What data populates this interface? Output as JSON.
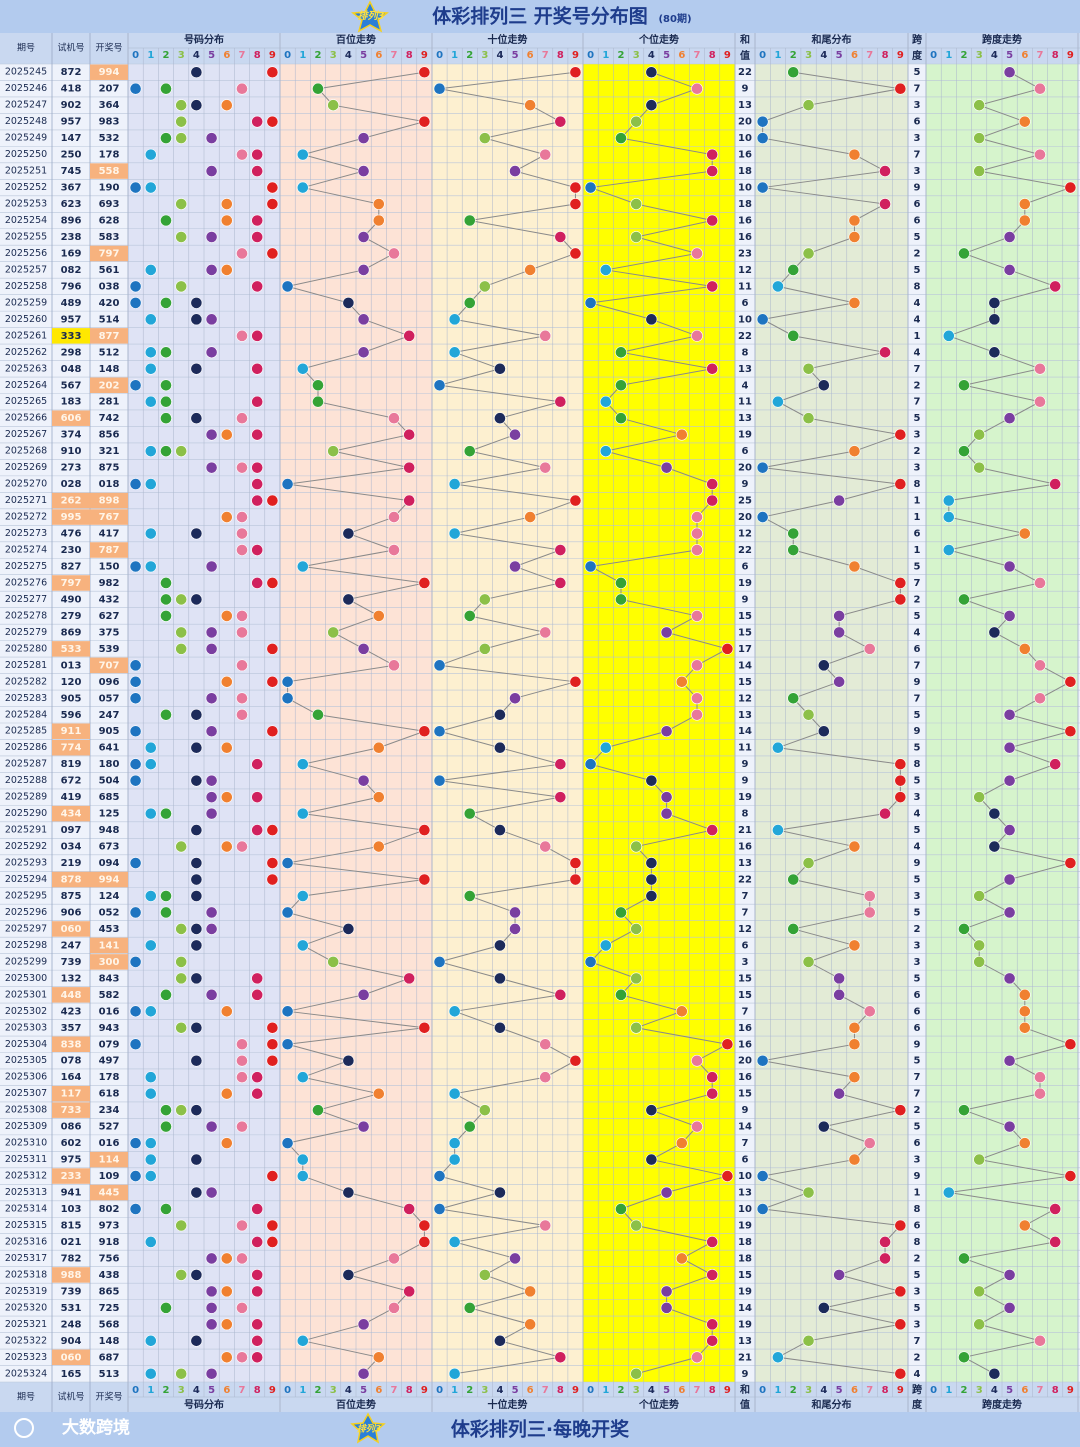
{
  "header": {
    "title": "体彩排列三 开奖号分布图",
    "count": "(80期)",
    "badge": "排列3"
  },
  "columns": {
    "period": "期号",
    "test": "试机号",
    "draw": "开奖号",
    "dist": "号码分布",
    "hundreds": "百位走势",
    "tens": "十位走势",
    "units": "个位走势",
    "sum1": "和",
    "sum2": "值",
    "tail": "和尾分布",
    "span1": "跨",
    "span2": "度",
    "span_trend": "跨度走势"
  },
  "digits": [
    "0",
    "1",
    "2",
    "3",
    "4",
    "5",
    "6",
    "7",
    "8",
    "9"
  ],
  "rows": [
    [
      "2025245",
      "872",
      "994",
      "22",
      "5"
    ],
    [
      "2025246",
      "418",
      "207",
      "9",
      "7"
    ],
    [
      "2025247",
      "902",
      "364",
      "13",
      "3"
    ],
    [
      "2025248",
      "957",
      "983",
      "20",
      "6"
    ],
    [
      "2025249",
      "147",
      "532",
      "10",
      "3"
    ],
    [
      "2025250",
      "250",
      "178",
      "16",
      "7"
    ],
    [
      "2025251",
      "745",
      "558",
      "18",
      "3"
    ],
    [
      "2025252",
      "367",
      "190",
      "10",
      "9"
    ],
    [
      "2025253",
      "623",
      "693",
      "18",
      "6"
    ],
    [
      "2025254",
      "896",
      "628",
      "16",
      "6"
    ],
    [
      "2025255",
      "238",
      "583",
      "16",
      "5"
    ],
    [
      "2025256",
      "169",
      "797",
      "23",
      "2"
    ],
    [
      "2025257",
      "082",
      "561",
      "12",
      "5"
    ],
    [
      "2025258",
      "796",
      "038",
      "11",
      "8"
    ],
    [
      "2025259",
      "489",
      "420",
      "6",
      "4"
    ],
    [
      "2025260",
      "957",
      "514",
      "10",
      "4"
    ],
    [
      "2025261",
      "333",
      "877",
      "22",
      "1"
    ],
    [
      "2025262",
      "298",
      "512",
      "8",
      "4"
    ],
    [
      "2025263",
      "048",
      "148",
      "13",
      "7"
    ],
    [
      "2025264",
      "567",
      "202",
      "4",
      "2"
    ],
    [
      "2025265",
      "183",
      "281",
      "11",
      "7"
    ],
    [
      "2025266",
      "606",
      "742",
      "13",
      "5"
    ],
    [
      "2025267",
      "374",
      "856",
      "19",
      "3"
    ],
    [
      "2025268",
      "910",
      "321",
      "6",
      "2"
    ],
    [
      "2025269",
      "273",
      "875",
      "20",
      "3"
    ],
    [
      "2025270",
      "028",
      "018",
      "9",
      "8"
    ],
    [
      "2025271",
      "262",
      "898",
      "25",
      "1"
    ],
    [
      "2025272",
      "995",
      "767",
      "20",
      "1"
    ],
    [
      "2025273",
      "476",
      "417",
      "12",
      "6"
    ],
    [
      "2025274",
      "230",
      "787",
      "22",
      "1"
    ],
    [
      "2025275",
      "827",
      "150",
      "6",
      "5"
    ],
    [
      "2025276",
      "797",
      "982",
      "19",
      "7"
    ],
    [
      "2025277",
      "490",
      "432",
      "9",
      "2"
    ],
    [
      "2025278",
      "279",
      "627",
      "15",
      "5"
    ],
    [
      "2025279",
      "869",
      "375",
      "15",
      "4"
    ],
    [
      "2025280",
      "533",
      "539",
      "17",
      "6"
    ],
    [
      "2025281",
      "013",
      "707",
      "14",
      "7"
    ],
    [
      "2025282",
      "120",
      "096",
      "15",
      "9"
    ],
    [
      "2025283",
      "905",
      "057",
      "12",
      "7"
    ],
    [
      "2025284",
      "596",
      "247",
      "13",
      "5"
    ],
    [
      "2025285",
      "911",
      "905",
      "14",
      "9"
    ],
    [
      "2025286",
      "774",
      "641",
      "11",
      "5"
    ],
    [
      "2025287",
      "819",
      "180",
      "9",
      "8"
    ],
    [
      "2025288",
      "672",
      "504",
      "9",
      "5"
    ],
    [
      "2025289",
      "419",
      "685",
      "19",
      "3"
    ],
    [
      "2025290",
      "434",
      "125",
      "8",
      "4"
    ],
    [
      "2025291",
      "097",
      "948",
      "21",
      "5"
    ],
    [
      "2025292",
      "034",
      "673",
      "16",
      "4"
    ],
    [
      "2025293",
      "219",
      "094",
      "13",
      "9"
    ],
    [
      "2025294",
      "878",
      "994",
      "22",
      "5"
    ],
    [
      "2025295",
      "875",
      "124",
      "7",
      "3"
    ],
    [
      "2025296",
      "906",
      "052",
      "7",
      "5"
    ],
    [
      "2025297",
      "060",
      "453",
      "12",
      "2"
    ],
    [
      "2025298",
      "247",
      "141",
      "6",
      "3"
    ],
    [
      "2025299",
      "739",
      "300",
      "3",
      "3"
    ],
    [
      "2025300",
      "132",
      "843",
      "15",
      "5"
    ],
    [
      "2025301",
      "448",
      "582",
      "15",
      "6"
    ],
    [
      "2025302",
      "423",
      "016",
      "7",
      "6"
    ],
    [
      "2025303",
      "357",
      "943",
      "16",
      "6"
    ],
    [
      "2025304",
      "838",
      "079",
      "16",
      "9"
    ],
    [
      "2025305",
      "078",
      "497",
      "20",
      "5"
    ],
    [
      "2025306",
      "164",
      "178",
      "16",
      "7"
    ],
    [
      "2025307",
      "117",
      "618",
      "15",
      "7"
    ],
    [
      "2025308",
      "733",
      "234",
      "9",
      "2"
    ],
    [
      "2025309",
      "086",
      "527",
      "14",
      "5"
    ],
    [
      "2025310",
      "602",
      "016",
      "7",
      "6"
    ],
    [
      "2025311",
      "975",
      "114",
      "6",
      "3"
    ],
    [
      "2025312",
      "233",
      "109",
      "10",
      "9"
    ],
    [
      "2025313",
      "941",
      "445",
      "13",
      "1"
    ],
    [
      "2025314",
      "103",
      "802",
      "10",
      "8"
    ],
    [
      "2025315",
      "815",
      "973",
      "19",
      "6"
    ],
    [
      "2025316",
      "021",
      "918",
      "18",
      "8"
    ],
    [
      "2025317",
      "782",
      "756",
      "18",
      "2"
    ],
    [
      "2025318",
      "988",
      "438",
      "15",
      "5"
    ],
    [
      "2025319",
      "739",
      "865",
      "19",
      "3"
    ],
    [
      "2025320",
      "531",
      "725",
      "14",
      "5"
    ],
    [
      "2025321",
      "248",
      "568",
      "19",
      "3"
    ],
    [
      "2025322",
      "904",
      "148",
      "13",
      "7"
    ],
    [
      "2025323",
      "060",
      "687",
      "21",
      "2"
    ],
    [
      "2025324",
      "165",
      "513",
      "9",
      "4"
    ]
  ],
  "footer": {
    "brand": "大数跨境",
    "slogan": "体彩排列三·每晚开奖"
  }
}
